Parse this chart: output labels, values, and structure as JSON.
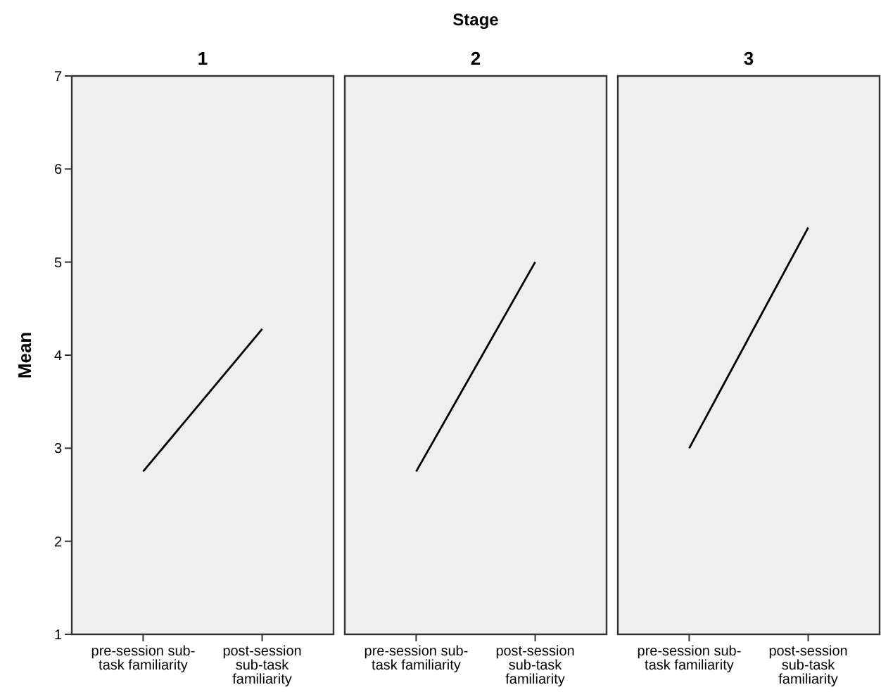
{
  "chart_data": [
    {
      "type": "line",
      "title": "1",
      "annotations": [
        "Stage"
      ],
      "ylabel": "Mean",
      "categories": [
        "pre-session sub-task familiarity",
        "post-session sub-task familiarity"
      ],
      "series": [
        {
          "color": "#000000",
          "values": [
            2.75,
            4.28
          ]
        }
      ],
      "ylim": [
        1,
        7
      ],
      "yticks": [
        1,
        2,
        3,
        4,
        5,
        6,
        7
      ],
      "grid": false
    },
    {
      "type": "line",
      "title": "2",
      "categories": [
        "pre-session sub-task familiarity",
        "post-session sub-task familiarity"
      ],
      "series": [
        {
          "color": "#000000",
          "values": [
            2.75,
            5.0
          ]
        }
      ],
      "ylim": [
        1,
        7
      ],
      "tick_labels": "x",
      "grid": false
    },
    {
      "type": "line",
      "title": "3",
      "categories": [
        "pre-session sub-task familiarity",
        "post-session sub-task familiarity"
      ],
      "series": [
        {
          "color": "#000000",
          "values": [
            3.0,
            5.37
          ]
        }
      ],
      "ylim": [
        1,
        7
      ],
      "tick_labels": "x",
      "grid": false
    }
  ]
}
